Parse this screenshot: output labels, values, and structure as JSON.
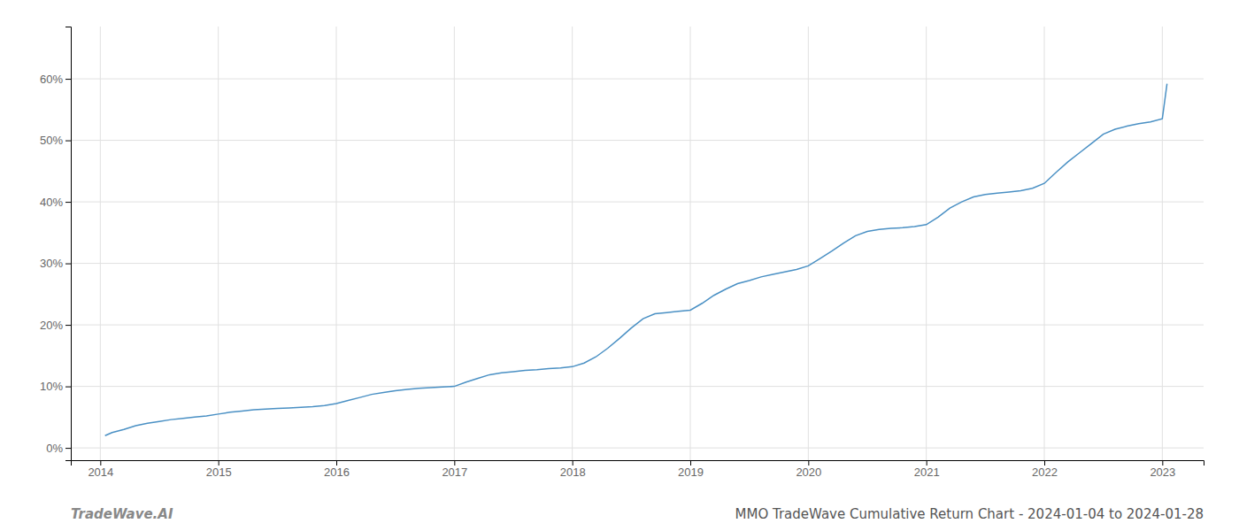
{
  "chart_data": {
    "type": "line",
    "title": "MMO TradeWave Cumulative Return Chart - 2024-01-04 to 2024-01-28",
    "annotations": [
      "TradeWave.AI"
    ],
    "color": "#4a90c4",
    "grid": true,
    "x": [
      2014.04,
      2014.1,
      2014.2,
      2014.3,
      2014.4,
      2014.5,
      2014.6,
      2014.7,
      2014.8,
      2014.9,
      2015.0,
      2015.1,
      2015.2,
      2015.3,
      2015.4,
      2015.5,
      2015.6,
      2015.7,
      2015.8,
      2015.9,
      2016.0,
      2016.1,
      2016.2,
      2016.3,
      2016.4,
      2016.5,
      2016.6,
      2016.7,
      2016.8,
      2016.9,
      2017.0,
      2017.1,
      2017.2,
      2017.3,
      2017.4,
      2017.5,
      2017.6,
      2017.7,
      2017.8,
      2017.9,
      2018.0,
      2018.1,
      2018.2,
      2018.3,
      2018.4,
      2018.5,
      2018.6,
      2018.7,
      2018.8,
      2018.9,
      2019.0,
      2019.1,
      2019.2,
      2019.3,
      2019.4,
      2019.5,
      2019.6,
      2019.7,
      2019.8,
      2019.9,
      2020.0,
      2020.1,
      2020.2,
      2020.3,
      2020.4,
      2020.5,
      2020.6,
      2020.7,
      2020.8,
      2020.9,
      2021.0,
      2021.1,
      2021.2,
      2021.3,
      2021.4,
      2021.5,
      2021.6,
      2021.7,
      2021.8,
      2021.9,
      2022.0,
      2022.1,
      2022.2,
      2022.3,
      2022.4,
      2022.5,
      2022.6,
      2022.7,
      2022.8,
      2022.9,
      2023.0,
      2023.04
    ],
    "values": [
      0.02,
      0.025,
      0.03,
      0.036,
      0.04,
      0.043,
      0.046,
      0.048,
      0.05,
      0.052,
      0.055,
      0.058,
      0.06,
      0.062,
      0.063,
      0.064,
      0.065,
      0.066,
      0.067,
      0.069,
      0.072,
      0.077,
      0.082,
      0.087,
      0.09,
      0.093,
      0.095,
      0.097,
      0.098,
      0.099,
      0.1,
      0.107,
      0.113,
      0.119,
      0.122,
      0.124,
      0.126,
      0.127,
      0.129,
      0.13,
      0.132,
      0.138,
      0.148,
      0.162,
      0.178,
      0.195,
      0.21,
      0.218,
      0.22,
      0.222,
      0.224,
      0.235,
      0.248,
      0.258,
      0.267,
      0.272,
      0.278,
      0.282,
      0.286,
      0.29,
      0.296,
      0.308,
      0.32,
      0.333,
      0.345,
      0.352,
      0.355,
      0.357,
      0.358,
      0.36,
      0.363,
      0.375,
      0.39,
      0.4,
      0.408,
      0.412,
      0.414,
      0.416,
      0.418,
      0.422,
      0.43,
      0.448,
      0.465,
      0.48,
      0.495,
      0.51,
      0.518,
      0.523,
      0.527,
      0.53,
      0.535,
      0.592
    ],
    "xlim": [
      2013.75,
      2023.35
    ],
    "xticks": [
      2014,
      2015,
      2016,
      2017,
      2018,
      2019,
      2020,
      2021,
      2022,
      2023
    ],
    "ylim": [
      -0.02,
      0.685
    ],
    "yticks": [
      {
        "value": 0.0,
        "label": "0%"
      },
      {
        "value": 0.1,
        "label": "10%"
      },
      {
        "value": 0.2,
        "label": "20%"
      },
      {
        "value": 0.3,
        "label": "30%"
      },
      {
        "value": 0.4,
        "label": "40%"
      },
      {
        "value": 0.5,
        "label": "50%"
      },
      {
        "value": 0.6,
        "label": "60%"
      }
    ]
  }
}
